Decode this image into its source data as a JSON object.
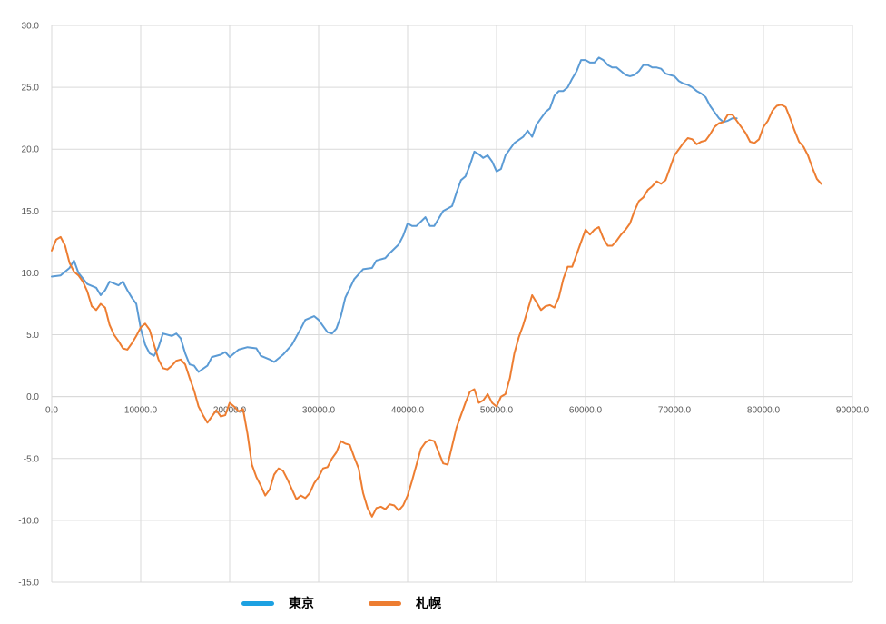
{
  "chart_data": {
    "type": "line",
    "xlim": [
      0,
      90000
    ],
    "ylim": [
      -15,
      30
    ],
    "x_ticks": [
      "0.0",
      "10000.0",
      "20000.0",
      "30000.0",
      "40000.0",
      "50000.0",
      "60000.0",
      "70000.0",
      "80000.0",
      "90000.0"
    ],
    "y_ticks": [
      "30.0",
      "25.0",
      "20.0",
      "15.0",
      "10.0",
      "5.0",
      "0.0",
      "-5.0",
      "-10.0",
      "-15.0"
    ],
    "grid": true,
    "legend_position": "bottom",
    "series": [
      {
        "name": "東京",
        "color": "#5b9bd5",
        "legend_color": "#1da1e2",
        "points": [
          [
            0,
            9.7
          ],
          [
            1000,
            9.8
          ],
          [
            2000,
            10.4
          ],
          [
            2500,
            11.0
          ],
          [
            3000,
            10.0
          ],
          [
            4000,
            9.1
          ],
          [
            5000,
            8.8
          ],
          [
            5500,
            8.2
          ],
          [
            6000,
            8.6
          ],
          [
            6500,
            9.3
          ],
          [
            7500,
            9.0
          ],
          [
            8000,
            9.3
          ],
          [
            8500,
            8.6
          ],
          [
            9000,
            8.0
          ],
          [
            9500,
            7.5
          ],
          [
            10000,
            5.5
          ],
          [
            10500,
            4.2
          ],
          [
            11000,
            3.5
          ],
          [
            11500,
            3.3
          ],
          [
            12000,
            4.0
          ],
          [
            12500,
            5.1
          ],
          [
            13500,
            4.9
          ],
          [
            14000,
            5.1
          ],
          [
            14500,
            4.7
          ],
          [
            15000,
            3.5
          ],
          [
            15500,
            2.6
          ],
          [
            16000,
            2.5
          ],
          [
            16500,
            2.0
          ],
          [
            17500,
            2.5
          ],
          [
            18000,
            3.2
          ],
          [
            19000,
            3.4
          ],
          [
            19500,
            3.6
          ],
          [
            20000,
            3.2
          ],
          [
            21000,
            3.8
          ],
          [
            22000,
            4.0
          ],
          [
            23000,
            3.9
          ],
          [
            23500,
            3.3
          ],
          [
            24500,
            3.0
          ],
          [
            25000,
            2.8
          ],
          [
            26000,
            3.4
          ],
          [
            27000,
            4.2
          ],
          [
            28000,
            5.5
          ],
          [
            28500,
            6.2
          ],
          [
            29500,
            6.5
          ],
          [
            30000,
            6.2
          ],
          [
            31000,
            5.2
          ],
          [
            31500,
            5.1
          ],
          [
            32000,
            5.5
          ],
          [
            32500,
            6.5
          ],
          [
            33000,
            8.0
          ],
          [
            34000,
            9.5
          ],
          [
            35000,
            10.3
          ],
          [
            36000,
            10.4
          ],
          [
            36500,
            11.0
          ],
          [
            37500,
            11.2
          ],
          [
            38000,
            11.6
          ],
          [
            39000,
            12.3
          ],
          [
            39500,
            13.0
          ],
          [
            40000,
            14.0
          ],
          [
            40500,
            13.8
          ],
          [
            41000,
            13.8
          ],
          [
            42000,
            14.5
          ],
          [
            42500,
            13.8
          ],
          [
            43000,
            13.8
          ],
          [
            43500,
            14.4
          ],
          [
            44000,
            15.0
          ],
          [
            44500,
            15.2
          ],
          [
            45000,
            15.4
          ],
          [
            45500,
            16.5
          ],
          [
            46000,
            17.5
          ],
          [
            46500,
            17.8
          ],
          [
            47000,
            18.7
          ],
          [
            47500,
            19.8
          ],
          [
            48000,
            19.6
          ],
          [
            48500,
            19.3
          ],
          [
            49000,
            19.5
          ],
          [
            49500,
            19.0
          ],
          [
            50000,
            18.2
          ],
          [
            50500,
            18.4
          ],
          [
            51000,
            19.5
          ],
          [
            51500,
            20.0
          ],
          [
            52000,
            20.5
          ],
          [
            53000,
            21.0
          ],
          [
            53500,
            21.5
          ],
          [
            54000,
            21.0
          ],
          [
            54500,
            22.0
          ],
          [
            55000,
            22.5
          ],
          [
            55500,
            23.0
          ],
          [
            56000,
            23.3
          ],
          [
            56500,
            24.3
          ],
          [
            57000,
            24.7
          ],
          [
            57500,
            24.7
          ],
          [
            58000,
            25.0
          ],
          [
            58500,
            25.7
          ],
          [
            59000,
            26.3
          ],
          [
            59500,
            27.2
          ],
          [
            60000,
            27.2
          ],
          [
            60500,
            27.0
          ],
          [
            61000,
            27.0
          ],
          [
            61500,
            27.4
          ],
          [
            62000,
            27.2
          ],
          [
            62500,
            26.8
          ],
          [
            63000,
            26.6
          ],
          [
            63500,
            26.6
          ],
          [
            64000,
            26.3
          ],
          [
            64500,
            26.0
          ],
          [
            65000,
            25.9
          ],
          [
            65500,
            26.0
          ],
          [
            66000,
            26.3
          ],
          [
            66500,
            26.8
          ],
          [
            67000,
            26.8
          ],
          [
            67500,
            26.6
          ],
          [
            68000,
            26.6
          ],
          [
            68500,
            26.5
          ],
          [
            69000,
            26.1
          ],
          [
            69500,
            26.0
          ],
          [
            70000,
            25.9
          ],
          [
            70500,
            25.5
          ],
          [
            71000,
            25.3
          ],
          [
            71500,
            25.2
          ],
          [
            72000,
            25.0
          ],
          [
            72500,
            24.7
          ],
          [
            73000,
            24.5
          ],
          [
            73500,
            24.2
          ],
          [
            74000,
            23.5
          ],
          [
            74500,
            23.0
          ],
          [
            75000,
            22.5
          ],
          [
            75500,
            22.2
          ],
          [
            76000,
            22.3
          ],
          [
            76500,
            22.5
          ],
          [
            77000,
            22.5
          ]
        ]
      },
      {
        "name": "札幌",
        "color": "#ed7d31",
        "legend_color": "#ed7d31",
        "points": [
          [
            0,
            11.8
          ],
          [
            500,
            12.7
          ],
          [
            1000,
            12.9
          ],
          [
            1500,
            12.2
          ],
          [
            2000,
            10.8
          ],
          [
            2500,
            10.1
          ],
          [
            3000,
            9.8
          ],
          [
            3500,
            9.3
          ],
          [
            4000,
            8.5
          ],
          [
            4500,
            7.3
          ],
          [
            5000,
            7.0
          ],
          [
            5500,
            7.5
          ],
          [
            6000,
            7.2
          ],
          [
            6500,
            5.8
          ],
          [
            7000,
            5.0
          ],
          [
            7500,
            4.5
          ],
          [
            8000,
            3.9
          ],
          [
            8500,
            3.8
          ],
          [
            9000,
            4.3
          ],
          [
            9500,
            4.9
          ],
          [
            10000,
            5.6
          ],
          [
            10500,
            5.9
          ],
          [
            11000,
            5.4
          ],
          [
            11500,
            4.2
          ],
          [
            12000,
            3.0
          ],
          [
            12500,
            2.3
          ],
          [
            13000,
            2.2
          ],
          [
            13500,
            2.5
          ],
          [
            14000,
            2.9
          ],
          [
            14500,
            3.0
          ],
          [
            15000,
            2.6
          ],
          [
            15500,
            1.5
          ],
          [
            16000,
            0.5
          ],
          [
            16500,
            -0.8
          ],
          [
            17000,
            -1.5
          ],
          [
            17500,
            -2.1
          ],
          [
            18000,
            -1.6
          ],
          [
            18500,
            -1.1
          ],
          [
            19000,
            -1.6
          ],
          [
            19500,
            -1.5
          ],
          [
            20000,
            -0.5
          ],
          [
            20500,
            -0.8
          ],
          [
            21000,
            -1.2
          ],
          [
            21500,
            -1.0
          ],
          [
            22000,
            -3.0
          ],
          [
            22500,
            -5.5
          ],
          [
            23000,
            -6.5
          ],
          [
            23500,
            -7.2
          ],
          [
            24000,
            -8.0
          ],
          [
            24500,
            -7.5
          ],
          [
            25000,
            -6.3
          ],
          [
            25500,
            -5.8
          ],
          [
            26000,
            -6.0
          ],
          [
            26500,
            -6.7
          ],
          [
            27000,
            -7.5
          ],
          [
            27500,
            -8.3
          ],
          [
            28000,
            -8.0
          ],
          [
            28500,
            -8.2
          ],
          [
            29000,
            -7.8
          ],
          [
            29500,
            -7.0
          ],
          [
            30000,
            -6.5
          ],
          [
            30500,
            -5.8
          ],
          [
            31000,
            -5.7
          ],
          [
            31500,
            -5.0
          ],
          [
            32000,
            -4.5
          ],
          [
            32500,
            -3.6
          ],
          [
            33000,
            -3.8
          ],
          [
            33500,
            -3.9
          ],
          [
            34000,
            -4.9
          ],
          [
            34500,
            -5.8
          ],
          [
            35000,
            -7.8
          ],
          [
            35500,
            -9.0
          ],
          [
            36000,
            -9.7
          ],
          [
            36500,
            -9.0
          ],
          [
            37000,
            -8.9
          ],
          [
            37500,
            -9.1
          ],
          [
            38000,
            -8.7
          ],
          [
            38500,
            -8.8
          ],
          [
            39000,
            -9.2
          ],
          [
            39500,
            -8.8
          ],
          [
            40000,
            -8.0
          ],
          [
            40500,
            -6.8
          ],
          [
            41000,
            -5.5
          ],
          [
            41500,
            -4.2
          ],
          [
            42000,
            -3.7
          ],
          [
            42500,
            -3.5
          ],
          [
            43000,
            -3.6
          ],
          [
            43500,
            -4.5
          ],
          [
            44000,
            -5.4
          ],
          [
            44500,
            -5.5
          ],
          [
            45000,
            -4.0
          ],
          [
            45500,
            -2.5
          ],
          [
            46000,
            -1.5
          ],
          [
            46500,
            -0.5
          ],
          [
            47000,
            0.4
          ],
          [
            47500,
            0.6
          ],
          [
            48000,
            -0.5
          ],
          [
            48500,
            -0.3
          ],
          [
            49000,
            0.2
          ],
          [
            49500,
            -0.5
          ],
          [
            50000,
            -0.8
          ],
          [
            50500,
            0.0
          ],
          [
            51000,
            0.2
          ],
          [
            51500,
            1.5
          ],
          [
            52000,
            3.5
          ],
          [
            52500,
            4.8
          ],
          [
            53000,
            5.8
          ],
          [
            53500,
            7.0
          ],
          [
            54000,
            8.2
          ],
          [
            54500,
            7.6
          ],
          [
            55000,
            7.0
          ],
          [
            55500,
            7.3
          ],
          [
            56000,
            7.4
          ],
          [
            56500,
            7.2
          ],
          [
            57000,
            8.0
          ],
          [
            57500,
            9.5
          ],
          [
            58000,
            10.5
          ],
          [
            58500,
            10.5
          ],
          [
            59000,
            11.5
          ],
          [
            59500,
            12.5
          ],
          [
            60000,
            13.5
          ],
          [
            60500,
            13.1
          ],
          [
            61000,
            13.5
          ],
          [
            61500,
            13.7
          ],
          [
            62000,
            12.8
          ],
          [
            62500,
            12.2
          ],
          [
            63000,
            12.2
          ],
          [
            63500,
            12.6
          ],
          [
            64000,
            13.1
          ],
          [
            64500,
            13.5
          ],
          [
            65000,
            14.0
          ],
          [
            65500,
            15.0
          ],
          [
            66000,
            15.8
          ],
          [
            66500,
            16.1
          ],
          [
            67000,
            16.7
          ],
          [
            67500,
            17.0
          ],
          [
            68000,
            17.4
          ],
          [
            68500,
            17.2
          ],
          [
            69000,
            17.5
          ],
          [
            69500,
            18.5
          ],
          [
            70000,
            19.5
          ],
          [
            70500,
            20.0
          ],
          [
            71000,
            20.5
          ],
          [
            71500,
            20.9
          ],
          [
            72000,
            20.8
          ],
          [
            72500,
            20.4
          ],
          [
            73000,
            20.6
          ],
          [
            73500,
            20.7
          ],
          [
            74000,
            21.2
          ],
          [
            74500,
            21.8
          ],
          [
            75000,
            22.1
          ],
          [
            75500,
            22.2
          ],
          [
            76000,
            22.8
          ],
          [
            76500,
            22.8
          ],
          [
            77000,
            22.3
          ],
          [
            77500,
            21.8
          ],
          [
            78000,
            21.3
          ],
          [
            78500,
            20.6
          ],
          [
            79000,
            20.5
          ],
          [
            79500,
            20.8
          ],
          [
            80000,
            21.8
          ],
          [
            80500,
            22.3
          ],
          [
            81000,
            23.1
          ],
          [
            81500,
            23.5
          ],
          [
            82000,
            23.6
          ],
          [
            82500,
            23.4
          ],
          [
            83000,
            22.5
          ],
          [
            83500,
            21.5
          ],
          [
            84000,
            20.6
          ],
          [
            84500,
            20.2
          ],
          [
            85000,
            19.5
          ],
          [
            85500,
            18.5
          ],
          [
            86000,
            17.6
          ],
          [
            86500,
            17.2
          ]
        ]
      }
    ]
  }
}
